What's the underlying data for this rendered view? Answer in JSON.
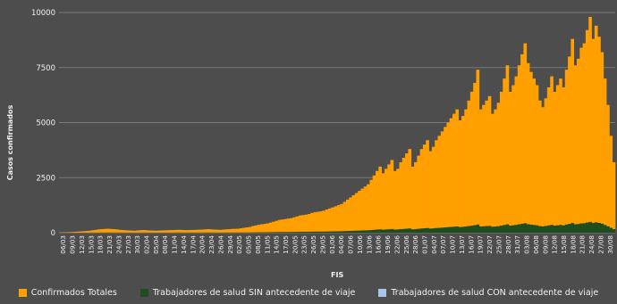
{
  "chart_data": {
    "type": "bar",
    "xlabel": "FIS",
    "ylabel": "Casos confirmados",
    "ylim": [
      0,
      10000
    ],
    "yticks": [
      "0",
      "2500",
      "5000",
      "7500",
      "10000"
    ],
    "x_tick_labels": [
      "06/03",
      "09/03",
      "12/03",
      "15/03",
      "18/03",
      "21/03",
      "24/03",
      "27/03",
      "30/03",
      "02/04",
      "05/04",
      "08/04",
      "11/04",
      "14/04",
      "17/04",
      "20/04",
      "23/04",
      "26/04",
      "29/04",
      "02/05",
      "05/05",
      "08/05",
      "11/05",
      "14/05",
      "17/05",
      "20/05",
      "23/05",
      "26/05",
      "29/05",
      "01/06",
      "04/06",
      "07/06",
      "10/06",
      "13/06",
      "16/06",
      "19/06",
      "22/06",
      "25/06",
      "28/06",
      "01/07",
      "04/07",
      "07/07",
      "10/07",
      "13/07",
      "16/07",
      "19/07",
      "22/07",
      "25/07",
      "28/07",
      "31/07",
      "03/08",
      "06/08",
      "09/08",
      "12/08",
      "15/08",
      "18/08",
      "21/08",
      "24/08",
      "27/08",
      "30/08"
    ],
    "series": [
      {
        "name": "Confirmados Totales",
        "color": "#ff9f00",
        "values": [
          10,
          15,
          20,
          25,
          30,
          40,
          50,
          60,
          70,
          80,
          90,
          110,
          130,
          150,
          160,
          170,
          180,
          170,
          160,
          150,
          130,
          120,
          110,
          100,
          95,
          90,
          100,
          110,
          120,
          110,
          100,
          95,
          90,
          95,
          100,
          105,
          110,
          115,
          120,
          125,
          130,
          125,
          120,
          115,
          120,
          125,
          130,
          135,
          140,
          150,
          160,
          150,
          140,
          135,
          130,
          140,
          150,
          160,
          170,
          175,
          180,
          200,
          220,
          240,
          260,
          300,
          330,
          360,
          380,
          400,
          420,
          460,
          500,
          540,
          580,
          600,
          620,
          640,
          660,
          700,
          740,
          780,
          800,
          820,
          850,
          900,
          930,
          950,
          970,
          1000,
          1050,
          1100,
          1150,
          1200,
          1250,
          1300,
          1400,
          1500,
          1600,
          1700,
          1800,
          1900,
          2000,
          2100,
          2200,
          2400,
          2600,
          2800,
          3000,
          2700,
          2900,
          3100,
          3300,
          2800,
          2900,
          3200,
          3400,
          3600,
          3800,
          3000,
          3200,
          3500,
          3800,
          4000,
          4200,
          3700,
          3900,
          4200,
          4400,
          4600,
          4800,
          5000,
          5200,
          5400,
          5600,
          5100,
          5300,
          5600,
          6000,
          6400,
          6800,
          7400,
          5600,
          5800,
          6000,
          6200,
          5400,
          5600,
          5900,
          6400,
          7000,
          7600,
          6400,
          6700,
          7100,
          7600,
          8100,
          8600,
          7700,
          7300,
          7000,
          6700,
          6000,
          5700,
          6100,
          6600,
          7100,
          6400,
          6700,
          7000,
          6600,
          7400,
          8000,
          8800,
          7600,
          7900,
          8400,
          8600,
          9200,
          9800,
          8800,
          9400,
          8900,
          8200,
          7000,
          5800,
          4400,
          3200
        ]
      },
      {
        "name": "Trabajadores de salud SIN antecedente de viaje",
        "color": "#1e4d1e",
        "values": [
          0,
          0,
          0,
          1,
          1,
          1,
          2,
          2,
          3,
          3,
          4,
          5,
          6,
          7,
          8,
          8,
          9,
          8,
          8,
          7,
          6,
          6,
          5,
          5,
          5,
          5,
          5,
          6,
          6,
          6,
          5,
          5,
          5,
          5,
          5,
          5,
          6,
          6,
          6,
          6,
          7,
          6,
          6,
          6,
          6,
          6,
          7,
          7,
          7,
          8,
          8,
          8,
          7,
          7,
          7,
          7,
          8,
          8,
          9,
          9,
          9,
          10,
          11,
          12,
          13,
          15,
          17,
          18,
          19,
          20,
          21,
          23,
          25,
          27,
          29,
          30,
          31,
          32,
          33,
          35,
          37,
          39,
          40,
          41,
          43,
          45,
          47,
          48,
          49,
          50,
          53,
          55,
          58,
          60,
          63,
          65,
          70,
          75,
          80,
          85,
          90,
          95,
          100,
          105,
          110,
          120,
          130,
          140,
          150,
          135,
          145,
          155,
          165,
          140,
          145,
          160,
          170,
          180,
          190,
          150,
          160,
          175,
          190,
          200,
          210,
          185,
          195,
          210,
          220,
          230,
          240,
          250,
          260,
          270,
          280,
          255,
          265,
          280,
          300,
          320,
          340,
          370,
          280,
          290,
          300,
          310,
          270,
          280,
          295,
          320,
          350,
          380,
          320,
          335,
          355,
          380,
          405,
          430,
          385,
          365,
          350,
          335,
          300,
          285,
          305,
          330,
          355,
          320,
          335,
          350,
          330,
          370,
          400,
          440,
          380,
          395,
          420,
          430,
          460,
          490,
          440,
          470,
          445,
          410,
          350,
          290,
          220,
          160
        ]
      },
      {
        "name": "Trabajadores de salud CON antecedente de viaje",
        "color": "#a9c4eb",
        "values": [
          0,
          0,
          0,
          0,
          0,
          0,
          1,
          1,
          1,
          1,
          1,
          1,
          1,
          1,
          1,
          1,
          1,
          1,
          0,
          0,
          0,
          0,
          0,
          0,
          0,
          0,
          0,
          0,
          0,
          0,
          0,
          0,
          0,
          0,
          0,
          0,
          0,
          0,
          0,
          0,
          0,
          0,
          0,
          0,
          0,
          0,
          0,
          0,
          0,
          0,
          0,
          0,
          0,
          0,
          0,
          0,
          0,
          0,
          0,
          0,
          0,
          0,
          0,
          0,
          0,
          0,
          0,
          0,
          0,
          0,
          0,
          0,
          0,
          0,
          0,
          0,
          0,
          0,
          0,
          0,
          0,
          0,
          0,
          0,
          0,
          0,
          0,
          0,
          0,
          0,
          0,
          0,
          0,
          0,
          0,
          0,
          0,
          0,
          0,
          0,
          0,
          0,
          0,
          0,
          0,
          0,
          0,
          0,
          0,
          0,
          0,
          0,
          0,
          0,
          0,
          0,
          0,
          0,
          0,
          0,
          0,
          0,
          0,
          0,
          0,
          0,
          0,
          0,
          0,
          0,
          0,
          0,
          0,
          0,
          0,
          0,
          0,
          0,
          0,
          0,
          0,
          0,
          0,
          0,
          0,
          0,
          0,
          0,
          0,
          0,
          0,
          0,
          0,
          0,
          0,
          0,
          0,
          0,
          0,
          0,
          0,
          0,
          0,
          0,
          0,
          0,
          0,
          0,
          0,
          0,
          0,
          0,
          0,
          0,
          0,
          0,
          0,
          0,
          0,
          0,
          0,
          0,
          0,
          0,
          0,
          0,
          0,
          0
        ]
      }
    ],
    "grid": true,
    "legend_position": "bottom"
  },
  "colors": {
    "background": "#4d4d4d",
    "grid": "#7a7a7a",
    "text": "#f2f2f2"
  }
}
